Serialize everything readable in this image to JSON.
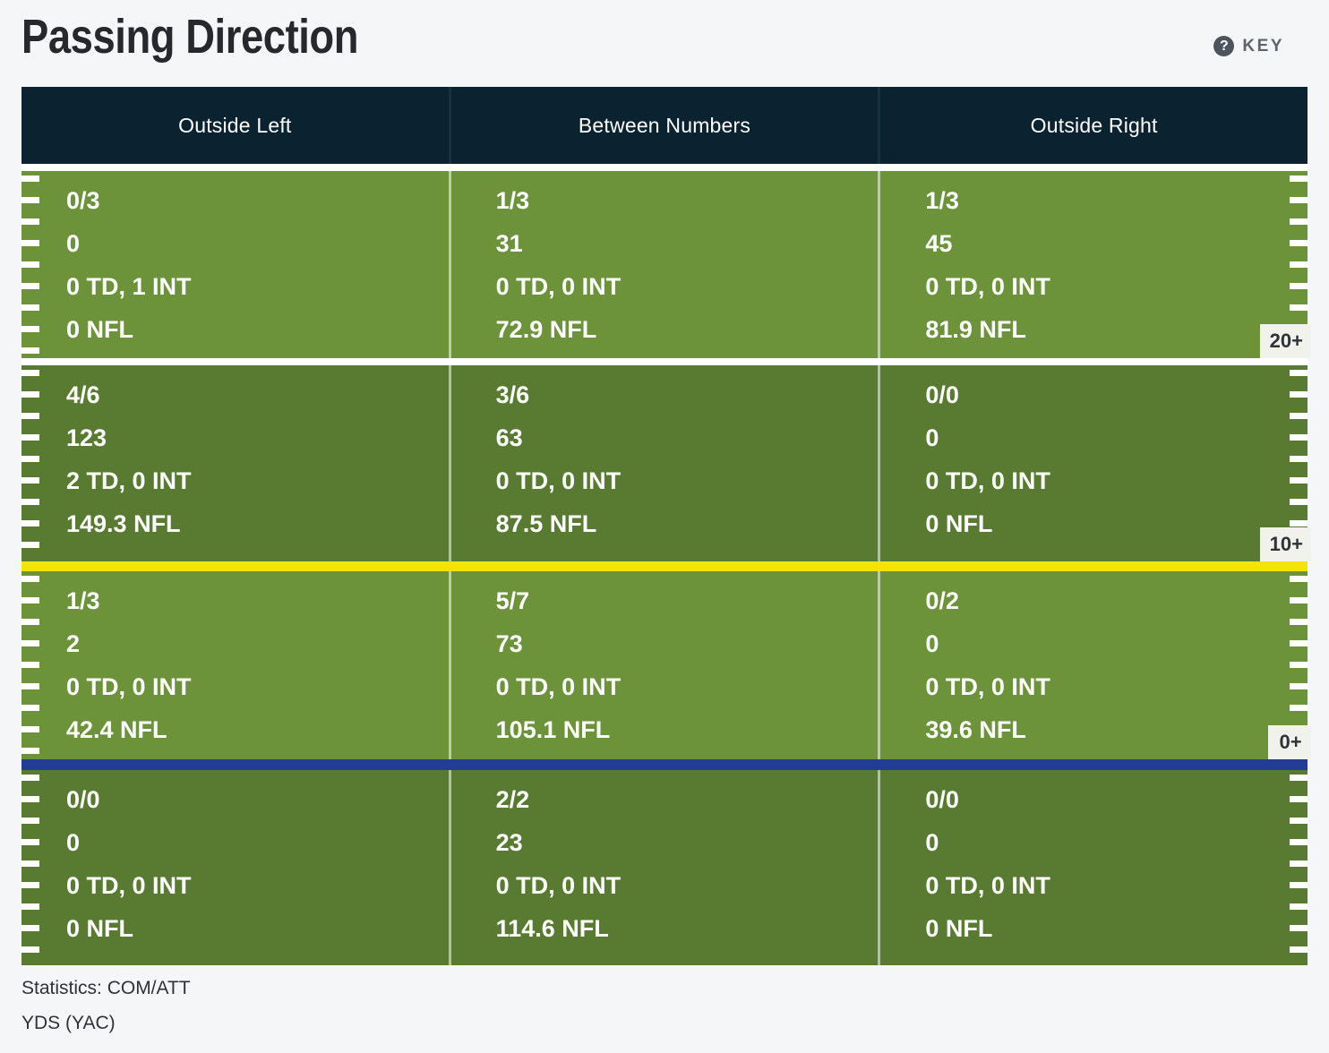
{
  "title": "Passing Direction",
  "key": {
    "label": "KEY",
    "icon": "help-circle-icon",
    "icon_glyph": "?"
  },
  "columns": [
    "Outside Left",
    "Between Numbers",
    "Outside Right"
  ],
  "rows": [
    {
      "depth_label": "20+",
      "cells": [
        [
          "0/3",
          "0",
          "0 TD, 1 INT",
          "0 NFL"
        ],
        [
          "1/3",
          "31",
          "0 TD, 0 INT",
          "72.9 NFL"
        ],
        [
          "1/3",
          "45",
          "0 TD, 0 INT",
          "81.9 NFL"
        ]
      ]
    },
    {
      "depth_label": "10+",
      "cells": [
        [
          "4/6",
          "123",
          "2 TD, 0 INT",
          "149.3 NFL"
        ],
        [
          "3/6",
          "63",
          "0 TD, 0 INT",
          "87.5 NFL"
        ],
        [
          "0/0",
          "0",
          "0 TD, 0 INT",
          "0 NFL"
        ]
      ]
    },
    {
      "depth_label": "0+",
      "cells": [
        [
          "1/3",
          "2",
          "0 TD, 0 INT",
          "42.4 NFL"
        ],
        [
          "5/7",
          "73",
          "0 TD, 0 INT",
          "105.1 NFL"
        ],
        [
          "0/2",
          "0",
          "0 TD, 0 INT",
          "39.6 NFL"
        ]
      ]
    },
    {
      "depth_label": "",
      "cells": [
        [
          "0/0",
          "0",
          "0 TD, 0 INT",
          "0 NFL"
        ],
        [
          "2/2",
          "23",
          "0 TD, 0 INT",
          "114.6 NFL"
        ],
        [
          "0/0",
          "0",
          "0 TD, 0 INT",
          "0 NFL"
        ]
      ]
    }
  ],
  "footer": {
    "line1": "Statistics: COM/ATT",
    "line2": "YDS (YAC)"
  },
  "colors": {
    "page_bg": "#f5f6f8",
    "header_bg": "#0b2230",
    "zone_light_green": "#6c9339",
    "zone_dark_green": "#587b31",
    "first_down_line_yellow": "#f3e403",
    "scrimmage_line_blue": "#233c94",
    "depth_label_bg": "#f0f2eb",
    "stat_text": "#ffffff"
  },
  "chart_data": {
    "type": "table",
    "title": "Passing Direction",
    "columns": [
      "Outside Left",
      "Between Numbers",
      "Outside Right"
    ],
    "depth_zones": [
      "20+",
      "10+",
      "0+",
      ""
    ],
    "stat_lines_per_cell": [
      "COM/ATT",
      "YDS (YAC)",
      "TD, INT",
      "NFL rating"
    ],
    "values": [
      [
        [
          "0/3",
          "0",
          "0 TD, 1 INT",
          "0 NFL"
        ],
        [
          "1/3",
          "31",
          "0 TD, 0 INT",
          "72.9 NFL"
        ],
        [
          "1/3",
          "45",
          "0 TD, 0 INT",
          "81.9 NFL"
        ]
      ],
      [
        [
          "4/6",
          "123",
          "2 TD, 0 INT",
          "149.3 NFL"
        ],
        [
          "3/6",
          "63",
          "0 TD, 0 INT",
          "87.5 NFL"
        ],
        [
          "0/0",
          "0",
          "0 TD, 0 INT",
          "0 NFL"
        ]
      ],
      [
        [
          "1/3",
          "2",
          "0 TD, 0 INT",
          "42.4 NFL"
        ],
        [
          "5/7",
          "73",
          "0 TD, 0 INT",
          "105.1 NFL"
        ],
        [
          "0/2",
          "0",
          "0 TD, 0 INT",
          "39.6 NFL"
        ]
      ],
      [
        [
          "0/0",
          "0",
          "0 TD, 0 INT",
          "0 NFL"
        ],
        [
          "2/2",
          "23",
          "0 TD, 0 INT",
          "114.6 NFL"
        ],
        [
          "0/0",
          "0",
          "0 TD, 0 INT",
          "0 NFL"
        ]
      ]
    ],
    "legend": {
      "line1": "Statistics: COM/ATT",
      "line2": "YDS (YAC)"
    }
  }
}
